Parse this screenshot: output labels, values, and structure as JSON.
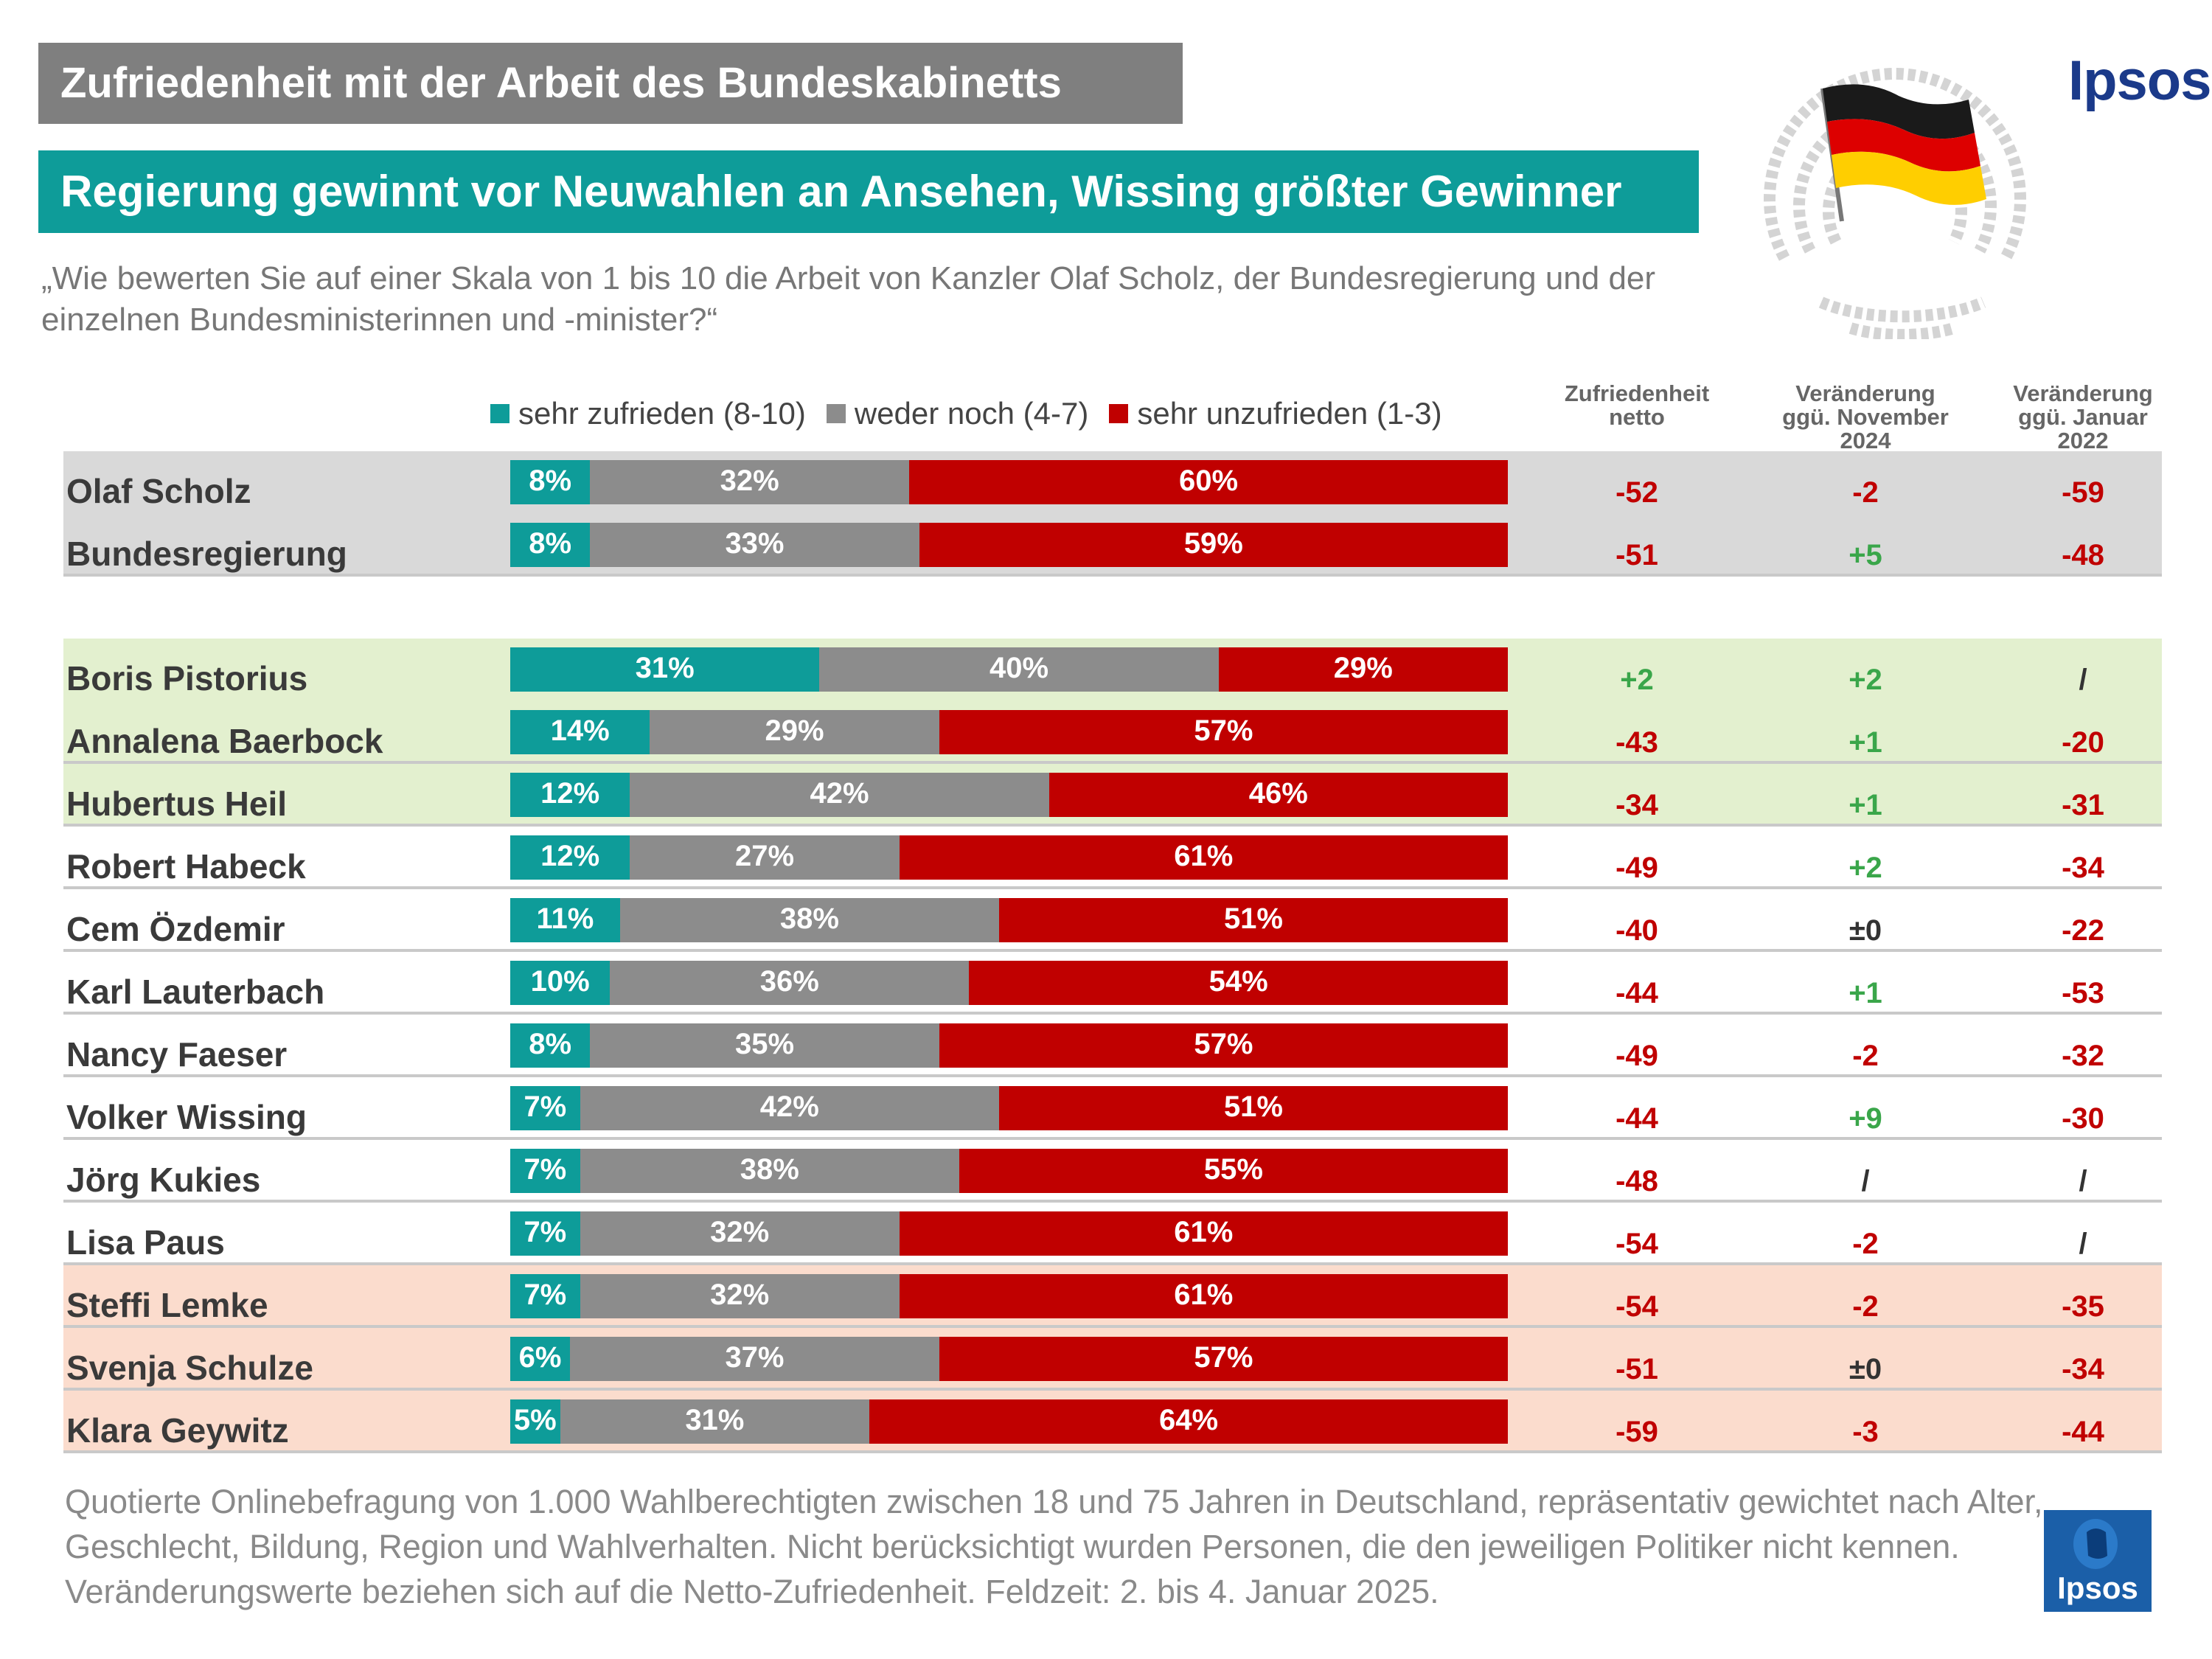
{
  "title": "Zufriedenheit mit der Arbeit des Bundeskabinetts",
  "subtitle": "Regierung gewinnt vor Neuwahlen an Ansehen, Wissing größter Gewinner",
  "question": "„Wie bewerten Sie auf einer Skala von 1 bis 10 die Arbeit von Kanzler Olaf Scholz, der Bundesregierung und der einzelnen Bundesministerinnen und -minister?“",
  "brand": "Ipsos",
  "colors": {
    "positive": "#0e9c99",
    "neutral": "#8c8c8c",
    "negative": "#c00000",
    "value_negative": "#c00000",
    "value_positive": "#3aa64a",
    "value_neutral": "#333333",
    "band_gray": "#d9d9d9",
    "band_green": "#e3f0cf",
    "band_peach": "#fbdccd"
  },
  "legend": [
    {
      "label": "sehr zufrieden (8-10)",
      "color": "#0e9c99"
    },
    {
      "label": "weder noch (4-7)",
      "color": "#8c8c8c"
    },
    {
      "label": "sehr unzufrieden (1-3)",
      "color": "#c00000"
    }
  ],
  "columns": [
    "Zufriedenheit netto",
    "Veränderung ggü. November 2024",
    "Veränderung ggü. Januar 2022"
  ],
  "chart_data": {
    "type": "bar",
    "stacked": true,
    "orientation": "horizontal",
    "categories": [
      "Olaf Scholz",
      "Bundesregierung",
      "Boris Pistorius",
      "Annalena Baerbock",
      "Hubertus Heil",
      "Robert Habeck",
      "Cem Özdemir",
      "Karl Lauterbach",
      "Nancy Faeser",
      "Volker Wissing",
      "Jörg Kukies",
      "Lisa Paus",
      "Steffi Lemke",
      "Svenja Schulze",
      "Klara Geywitz"
    ],
    "series": [
      {
        "name": "sehr zufrieden (8-10)",
        "values": [
          8,
          8,
          31,
          14,
          12,
          12,
          11,
          10,
          8,
          7,
          7,
          7,
          7,
          6,
          5
        ]
      },
      {
        "name": "weder noch (4-7)",
        "values": [
          32,
          33,
          40,
          29,
          42,
          27,
          38,
          36,
          35,
          42,
          38,
          32,
          32,
          37,
          31
        ]
      },
      {
        "name": "sehr unzufrieden (1-3)",
        "values": [
          60,
          59,
          29,
          57,
          46,
          61,
          51,
          54,
          57,
          51,
          55,
          61,
          61,
          57,
          64
        ]
      }
    ],
    "table": {
      "netto": [
        "-52",
        "-51",
        "+2",
        "-43",
        "-34",
        "-49",
        "-40",
        "-44",
        "-49",
        "-44",
        "-48",
        "-54",
        "-54",
        "-51",
        "-59"
      ],
      "change_nov_2024": [
        "-2",
        "+5",
        "+2",
        "+1",
        "+1",
        "+2",
        "±0",
        "+1",
        "-2",
        "+9",
        "/",
        "-2",
        "-2",
        "±0",
        "-3"
      ],
      "change_jan_2022": [
        "-59",
        "-48",
        "/",
        "-20",
        "-31",
        "-34",
        "-22",
        "-53",
        "-32",
        "-30",
        "/",
        "/",
        "-35",
        "-34",
        "-44"
      ]
    },
    "row_groups": [
      "gray",
      "gray",
      "green",
      "green",
      "green",
      "white",
      "white",
      "white",
      "white",
      "white",
      "white",
      "white",
      "peach",
      "peach",
      "peach"
    ]
  },
  "footnote": "Quotierte Onlinebefragung von 1.000 Wahlberechtigten zwischen 18 und 75 Jahren in Deutschland, repräsentativ gewichtet nach Alter, Geschlecht, Bildung, Region und Wahlverhalten. Nicht berücksichtigt wurden Personen, die den jeweiligen Politiker nicht kennen. Veränderungswerte beziehen sich auf die Netto-Zufriedenheit. Feldzeit: 2. bis 4. Januar 2025."
}
